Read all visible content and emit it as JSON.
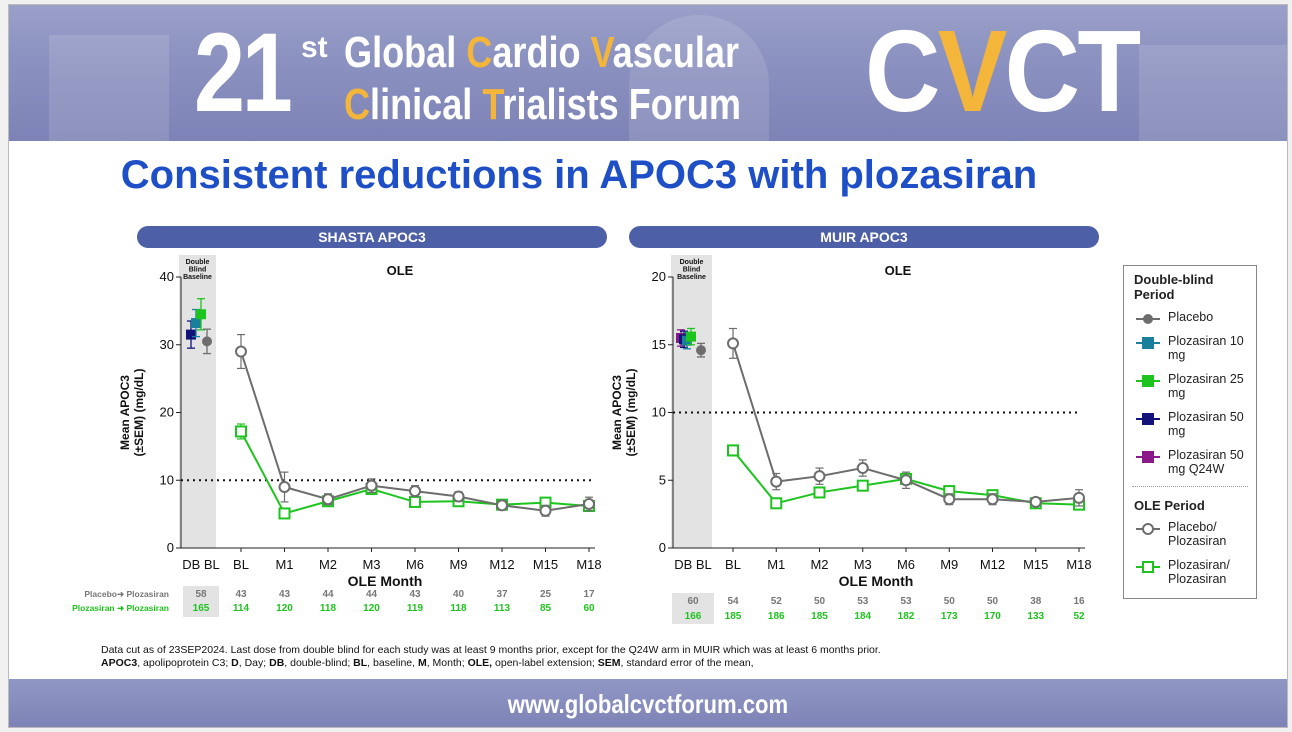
{
  "banner": {
    "number": "21",
    "superscript": "st",
    "line1": {
      "pre": "Global ",
      "c": "C",
      "mid": "ardio ",
      "v": "V",
      "post": "ascular"
    },
    "line2": {
      "c": "C",
      "mid": "linical ",
      "t": "T",
      "post": "rialists Forum"
    },
    "logo": {
      "part1": "C",
      "part2": "V",
      "part3": "CT"
    }
  },
  "title": "Consistent reductions in APOC3 with plozasiran",
  "colors": {
    "placebo": "#6d6d6d",
    "plz10": "#1a7f9a",
    "plz25": "#1ec41e",
    "plz50": "#13127a",
    "plz50q24w": "#8a1a8a",
    "ole_placebo": "#6d6d6d",
    "ole_plz": "#1ec41e",
    "header_bar": "#4d5fa6"
  },
  "chart_data": [
    {
      "type": "line",
      "title": "SHASTA APOC3",
      "subtitle": "OLE",
      "db_box_label": [
        "Double",
        "Blind",
        "Baseline"
      ],
      "ylabel": [
        "Mean APOC3",
        "(±SEM) (mg/dL)"
      ],
      "xlabel": "OLE Month",
      "ylim": [
        0,
        40
      ],
      "yticks": [
        0,
        10,
        20,
        30,
        40
      ],
      "reference_line": 10,
      "x_tick_labels": [
        "DB BL",
        "BL",
        "M1",
        "M2",
        "M3",
        "M6",
        "M9",
        "M12",
        "M15",
        "M18"
      ],
      "db_baseline": [
        {
          "series": "Plozasiran 50 mg",
          "value": 31.5,
          "err": 2.0
        },
        {
          "series": "Plozasiran 10 mg",
          "value": 33.2,
          "err": 2.0
        },
        {
          "series": "Plozasiran 25 mg",
          "value": 34.5,
          "err": 2.3
        },
        {
          "series": "Placebo",
          "value": 30.5,
          "err": 1.8
        }
      ],
      "series": [
        {
          "name": "Placebo/Plozasiran",
          "values": [
            29.0,
            9.0,
            7.2,
            9.2,
            8.4,
            7.6,
            6.3,
            5.5,
            6.5
          ],
          "err": [
            2.5,
            2.2,
            0.8,
            1.0,
            0.8,
            0.7,
            0.7,
            0.8,
            1.0
          ]
        },
        {
          "name": "Plozasiran/Plozasiran",
          "values": [
            17.2,
            5.1,
            6.9,
            8.7,
            6.8,
            6.9,
            6.4,
            6.7,
            6.2
          ],
          "err": [
            1.1,
            0.4,
            0.4,
            0.5,
            0.4,
            0.4,
            0.4,
            0.5,
            0.5
          ]
        }
      ],
      "n_at_risk": {
        "labels": [
          "Placebo➜ Plozasiran",
          "Plozasiran ➜ Plozasiran"
        ],
        "rows": [
          [
            "58",
            "43",
            "43",
            "44",
            "44",
            "43",
            "40",
            "37",
            "25",
            "17"
          ],
          [
            "165",
            "114",
            "120",
            "118",
            "120",
            "119",
            "118",
            "113",
            "85",
            "60"
          ]
        ]
      }
    },
    {
      "type": "line",
      "title": "MUIR APOC3",
      "subtitle": "OLE",
      "db_box_label": [
        "Double",
        "Blind",
        "Baseline"
      ],
      "ylabel": [
        "Mean APOC3",
        "(±SEM) (mg/dL)"
      ],
      "xlabel": "OLE Month",
      "ylim": [
        0,
        20
      ],
      "yticks": [
        0,
        5,
        10,
        15,
        20
      ],
      "reference_line": 10,
      "x_tick_labels": [
        "DB BL",
        "BL",
        "M1",
        "M2",
        "M3",
        "M6",
        "M9",
        "M12",
        "M15",
        "M18"
      ],
      "db_baseline": [
        {
          "series": "Plozasiran 50 mg Q24W",
          "value": 15.5,
          "err": 0.6
        },
        {
          "series": "Plozasiran 50 mg",
          "value": 15.4,
          "err": 0.6
        },
        {
          "series": "Plozasiran 10 mg",
          "value": 15.3,
          "err": 0.6
        },
        {
          "series": "Plozasiran 25 mg",
          "value": 15.6,
          "err": 0.6
        },
        {
          "series": "Placebo",
          "value": 14.6,
          "err": 0.5
        }
      ],
      "series": [
        {
          "name": "Placebo/Plozasiran",
          "values": [
            15.1,
            4.9,
            5.3,
            5.9,
            5.0,
            3.6,
            3.6,
            3.4,
            3.7
          ],
          "err": [
            1.1,
            0.6,
            0.6,
            0.6,
            0.6,
            0.4,
            0.4,
            0.3,
            0.6
          ]
        },
        {
          "name": "Plozasiran/Plozasiran",
          "values": [
            7.2,
            3.3,
            4.1,
            4.6,
            5.1,
            4.2,
            3.9,
            3.3,
            3.2
          ],
          "err": [
            0.4,
            0.3,
            0.3,
            0.3,
            0.3,
            0.3,
            0.3,
            0.2,
            0.3
          ]
        }
      ],
      "n_at_risk": {
        "labels": [
          "",
          ""
        ],
        "rows": [
          [
            "60",
            "54",
            "52",
            "50",
            "53",
            "53",
            "50",
            "50",
            "38",
            "16"
          ],
          [
            "166",
            "185",
            "186",
            "185",
            "184",
            "182",
            "173",
            "170",
            "133",
            "52"
          ]
        ]
      }
    }
  ],
  "legend": {
    "db_title": "Double-blind Period",
    "db_items": [
      {
        "label": "Placebo",
        "color_key": "placebo",
        "shape": "circle"
      },
      {
        "label": "Plozasiran 10 mg",
        "color_key": "plz10",
        "shape": "square"
      },
      {
        "label": "Plozasiran 25 mg",
        "color_key": "plz25",
        "shape": "square"
      },
      {
        "label": "Plozasiran 50 mg",
        "color_key": "plz50",
        "shape": "square"
      },
      {
        "label": "Plozasiran 50 mg Q24W",
        "color_key": "plz50q24w",
        "shape": "square"
      }
    ],
    "ole_title": "OLE Period",
    "ole_items": [
      {
        "label": "Placebo/ Plozasiran",
        "color_key": "ole_placebo",
        "shape": "open-circle"
      },
      {
        "label": "Plozasiran/ Plozasiran",
        "color_key": "ole_plz",
        "shape": "open-square"
      }
    ]
  },
  "footnote": {
    "line1": "Data cut as of 23SEP2024. Last dose from double blind for each study was at least 9 months prior, except for the Q24W arm in MUIR which was at least 6 months prior.",
    "line2": [
      {
        "b": "APOC3",
        "t": ", apolipoprotein C3; "
      },
      {
        "b": "D",
        "t": ", Day; "
      },
      {
        "b": "DB",
        "t": ", double-blind; "
      },
      {
        "b": "BL",
        "t": ", baseline, "
      },
      {
        "b": "M",
        "t": ", Month; "
      },
      {
        "b": "OLE,",
        "t": " open-label extension; "
      },
      {
        "b": "SEM",
        "t": ", standard error of the mean,"
      }
    ]
  },
  "footer_url": "www.globalcvctforum.com"
}
